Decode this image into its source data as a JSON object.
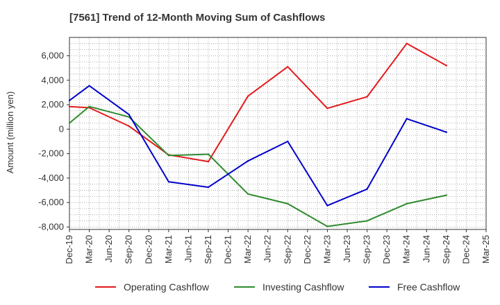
{
  "chart_data": {
    "type": "line",
    "title": "[7561]  Trend of 12-Month Moving Sum of Cashflows",
    "xlabel": "",
    "ylabel": "Amount (million yen)",
    "categories": [
      "Dec-19",
      "Mar-20",
      "Jun-20",
      "Sep-20",
      "Dec-20",
      "Mar-21",
      "Jun-21",
      "Sep-21",
      "Dec-21",
      "Mar-22",
      "Jun-22",
      "Sep-22",
      "Dec-22",
      "Mar-23",
      "Jun-23",
      "Sep-23",
      "Dec-23",
      "Mar-24",
      "Jun-24",
      "Sep-24",
      "Dec-24",
      "Mar-25"
    ],
    "ylim": [
      -8200,
      7500
    ],
    "yticks": [
      -8000,
      -6000,
      -4000,
      -2000,
      0,
      2000,
      4000,
      6000
    ],
    "ytick_labels": [
      "-8,000",
      "-6,000",
      "-4,000",
      "-2,000",
      "0",
      "2,000",
      "4,000",
      "6,000"
    ],
    "grid": true,
    "legend_position": "bottom",
    "series": [
      {
        "name": "Operating Cashflow",
        "color": "#e31a1c",
        "values": [
          1850,
          1750,
          null,
          250,
          null,
          -2100,
          null,
          -2650,
          null,
          2700,
          null,
          5100,
          null,
          1700,
          null,
          2650,
          null,
          7000,
          null,
          5200,
          null,
          null
        ]
      },
      {
        "name": "Investing Cashflow",
        "color": "#2e8b2e",
        "values": [
          500,
          1850,
          null,
          1000,
          null,
          -2150,
          null,
          -2050,
          null,
          -5300,
          null,
          -6100,
          null,
          -7950,
          null,
          -7500,
          null,
          -6100,
          null,
          -5400,
          null,
          null
        ]
      },
      {
        "name": "Free Cashflow",
        "color": "#0000cc",
        "values": [
          2350,
          3550,
          null,
          1200,
          null,
          -4300,
          null,
          -4750,
          null,
          -2600,
          null,
          -1000,
          null,
          -6250,
          null,
          -4900,
          null,
          850,
          null,
          -250,
          null,
          null
        ]
      }
    ]
  }
}
